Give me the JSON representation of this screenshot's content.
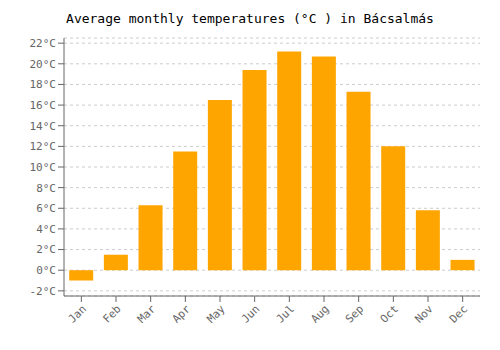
{
  "chart_data": {
    "type": "bar",
    "title": "Average monthly temperatures (°C ) in Bácsalmás",
    "categories": [
      "Jan",
      "Feb",
      "Mar",
      "Apr",
      "May",
      "Jun",
      "Jul",
      "Aug",
      "Sep",
      "Oct",
      "Nov",
      "Dec"
    ],
    "values": [
      -1.0,
      1.5,
      6.3,
      11.5,
      16.5,
      19.4,
      21.2,
      20.7,
      17.3,
      12.0,
      5.8,
      1.0
    ],
    "color": "#FFA500",
    "ylim": [
      -2.5,
      22.5
    ],
    "yticks": [
      {
        "value": -2,
        "label": "-2°C"
      },
      {
        "value": 0,
        "label": "0°C"
      },
      {
        "value": 2,
        "label": "2°C"
      },
      {
        "value": 4,
        "label": "4°C"
      },
      {
        "value": 6,
        "label": "6°C"
      },
      {
        "value": 8,
        "label": "8°C"
      },
      {
        "value": 10,
        "label": "10°C"
      },
      {
        "value": 12,
        "label": "12°C"
      },
      {
        "value": 14,
        "label": "14°C"
      },
      {
        "value": 16,
        "label": "16°C"
      },
      {
        "value": 18,
        "label": "18°C"
      },
      {
        "value": 20,
        "label": "20°C"
      },
      {
        "value": 22,
        "label": "22°C"
      }
    ],
    "grid": true
  }
}
